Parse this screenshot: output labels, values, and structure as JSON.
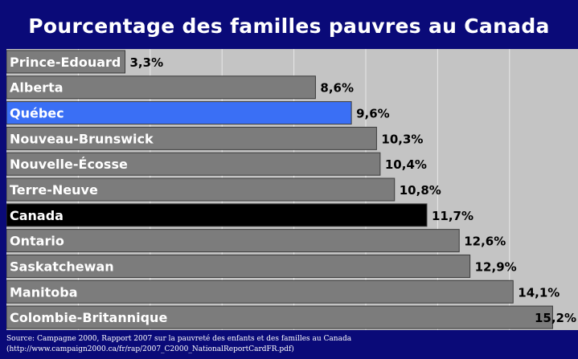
{
  "chart_data": {
    "type": "bar",
    "orientation": "horizontal",
    "title": "Pourcentage des familles pauvres au Canada",
    "categories": [
      "Prince-Edouard",
      "Alberta",
      "Québec",
      "Nouveau-Brunswick",
      "Nouvelle-Écosse",
      "Terre-Neuve",
      "Canada",
      "Ontario",
      "Saskatchewan",
      "Manitoba",
      "Colombie-Britannique"
    ],
    "values": [
      3.3,
      8.6,
      9.6,
      10.3,
      10.4,
      10.8,
      11.7,
      12.6,
      12.9,
      14.1,
      15.2
    ],
    "value_labels": [
      "3,3%",
      "8,6%",
      "9,6%",
      "10,3%",
      "10,4%",
      "10,8%",
      "11,7%",
      "12,6%",
      "12,9%",
      "14,1%",
      "15,2%"
    ],
    "xlim": [
      0,
      16
    ],
    "grid": true,
    "legend": "none",
    "colors": {
      "default": "#7c7c7c",
      "highlight_quebec": "#3a6ff5",
      "highlight_canada": "#000000",
      "plot_background": "#c4c4c4",
      "page_background": "#0a0a78"
    }
  },
  "source": {
    "line1": "Source: Campagne 2000, Rapport 2007 sur la pauvreté des enfants et des familles au Canada",
    "line2": "(http://www.campaign2000.ca/fr/rap/2007_C2000_NationalReportCardFR.pdf)"
  }
}
